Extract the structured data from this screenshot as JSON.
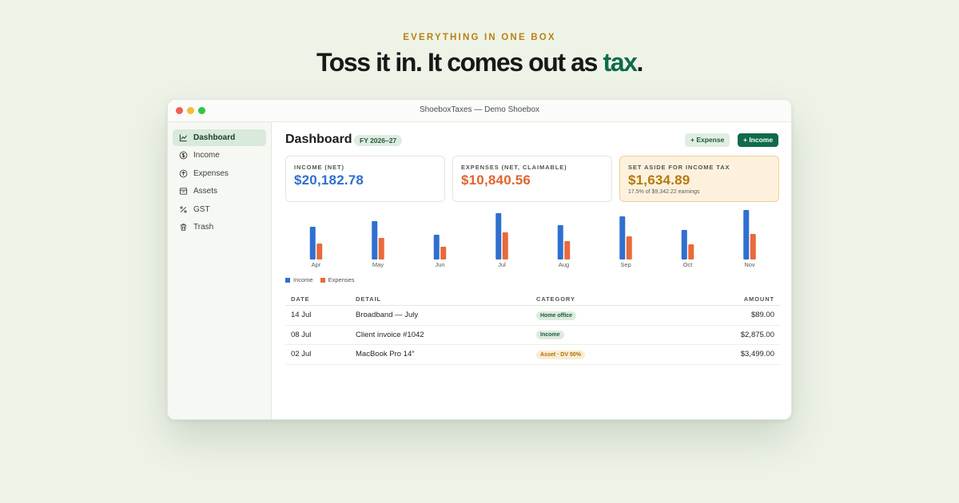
{
  "hero": {
    "eyebrow": "EVERYTHING IN ONE BOX",
    "headline_lead": "Toss it in. It comes out as ",
    "headline_accent": "tax",
    "headline_end": "."
  },
  "window": {
    "title": "ShoeboxTaxes — Demo Shoebox"
  },
  "sidebar": {
    "items": [
      {
        "label": "Dashboard",
        "icon": "chart-line-icon",
        "active": true
      },
      {
        "label": "Income",
        "icon": "dollar-circle-icon",
        "active": false
      },
      {
        "label": "Expenses",
        "icon": "arrow-up-circle-icon",
        "active": false
      },
      {
        "label": "Assets",
        "icon": "archive-box-icon",
        "active": false
      },
      {
        "label": "GST",
        "icon": "percent-icon",
        "active": false
      },
      {
        "label": "Trash",
        "icon": "trash-icon",
        "active": false
      }
    ]
  },
  "header": {
    "title": "Dashboard",
    "fy_badge": "FY 2026–27",
    "add_expense": "+ Expense",
    "add_income": "+ Income"
  },
  "cards": {
    "income": {
      "label": "INCOME (NET)",
      "value": "$20,182.78"
    },
    "expenses": {
      "label": "EXPENSES (NET, CLAIMABLE)",
      "value": "$10,840.56"
    },
    "tax": {
      "label": "SET ASIDE FOR INCOME TAX",
      "value": "$1,634.89",
      "sub": "17.5% of $9,342.22 earnings"
    }
  },
  "colors": {
    "income": "#2f6fd0",
    "expenses": "#e86a3a",
    "brand": "#0f6b4a",
    "tax_accent": "#b47a0c"
  },
  "chart_data": {
    "type": "bar",
    "categories": [
      "Apr",
      "May",
      "Jun",
      "Jul",
      "Aug",
      "Sep",
      "Oct",
      "Nov"
    ],
    "series": [
      {
        "name": "Income",
        "values": [
          41,
          48,
          31,
          58,
          43,
          54,
          37,
          62
        ]
      },
      {
        "name": "Expenses",
        "values": [
          20,
          27,
          16,
          34,
          23,
          29,
          19,
          32
        ]
      }
    ],
    "ylim": [
      0,
      64
    ],
    "legend": "bottom-left",
    "grid": false
  },
  "legend": {
    "income": "Income",
    "expenses": "Expenses"
  },
  "table": {
    "headers": {
      "date": "DATE",
      "detail": "DETAIL",
      "category": "CATEGORY",
      "amount": "AMOUNT"
    },
    "rows": [
      {
        "date": "14 Jul",
        "detail": "Broadband — July",
        "category": "Home office",
        "tone": "green",
        "amount": "$89.00"
      },
      {
        "date": "08 Jul",
        "detail": "Client invoice #1042",
        "category": "Income",
        "tone": "green",
        "amount": "$2,875.00"
      },
      {
        "date": "02 Jul",
        "detail": "MacBook Pro 14″",
        "category": "Asset · DV 50%",
        "tone": "amber",
        "amount": "$3,499.00"
      }
    ]
  }
}
